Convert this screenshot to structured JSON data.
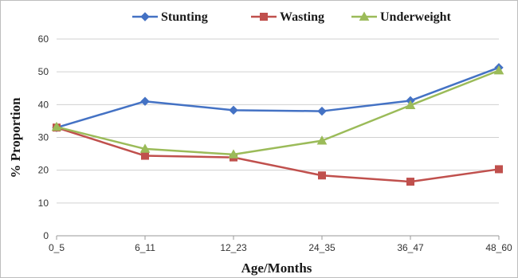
{
  "chart_data": {
    "type": "line",
    "title": "",
    "xlabel": "Age/Months",
    "ylabel": "% Proportion",
    "categories": [
      "0_5",
      "6_11",
      "12_23",
      "24_35",
      "36_47",
      "48_60"
    ],
    "ylim": [
      0,
      60
    ],
    "yticks": [
      0,
      10,
      20,
      30,
      40,
      50,
      60
    ],
    "grid": true,
    "legend_position": "top",
    "series": [
      {
        "name": "Stunting",
        "color": "#4472C4",
        "marker": "diamond",
        "values": [
          33.0,
          41.0,
          38.3,
          38.0,
          41.2,
          51.3
        ]
      },
      {
        "name": "Wasting",
        "color": "#C0504D",
        "marker": "square",
        "values": [
          33.0,
          24.4,
          23.9,
          18.4,
          16.5,
          20.3
        ]
      },
      {
        "name": "Underweight",
        "color": "#9BBB59",
        "marker": "triangle",
        "values": [
          33.2,
          26.5,
          24.8,
          29.0,
          39.8,
          50.4
        ]
      }
    ]
  }
}
